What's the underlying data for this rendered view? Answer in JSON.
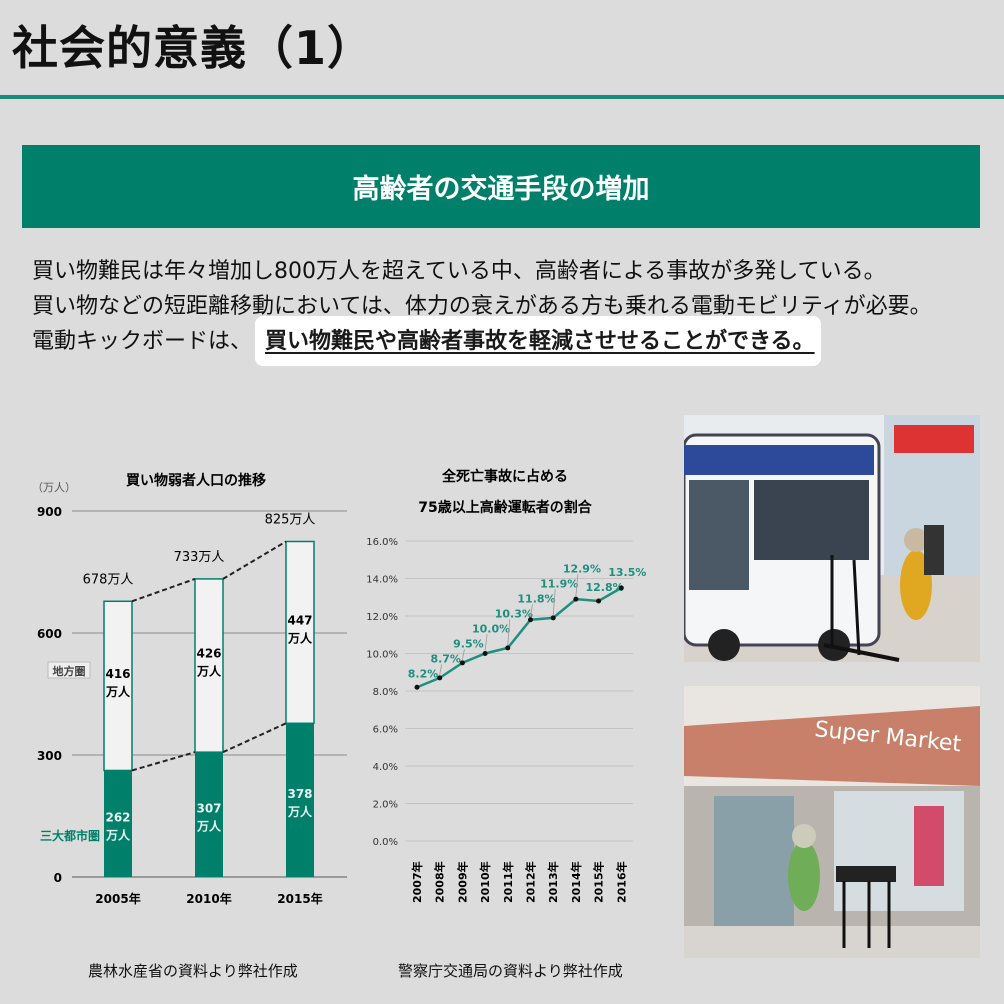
{
  "title": "社会的意義（1）",
  "banner": "高齢者の交通手段の増加",
  "body": {
    "line1": "買い物難民は年々増加し800万人を超えている中、高齢者による事故が多発している。",
    "line2": "買い物などの短距離移動においては、体力の衰えがある方も乗れる電動モビリティが必要。",
    "line3_prefix": "電動キックボードは、",
    "line3_highlight": "買い物難民や高齢者事故を軽減させせることができる。"
  },
  "colors": {
    "accent": "#00806b",
    "background": "#dcdcdc",
    "line": "#1f8f7f"
  },
  "chart_data": [
    {
      "type": "bar",
      "stacked": true,
      "title": "買い物弱者人口の推移",
      "unit_label": "（万人）",
      "categories": [
        "2005年",
        "2010年",
        "2015年"
      ],
      "ylim": [
        0,
        900
      ],
      "yticks": [
        "0",
        "300",
        "600",
        "900"
      ],
      "grid": true,
      "series": [
        {
          "name": "三大都市圏",
          "values": [
            262,
            307,
            378
          ],
          "labels": [
            "262\n万人",
            "307\n万人",
            "378\n万人"
          ],
          "color": "#00806b"
        },
        {
          "name": "地方圏",
          "values": [
            416,
            426,
            447
          ],
          "labels": [
            "416\n万人",
            "426\n万人",
            "447\n万人"
          ],
          "color": "#f2f2f2"
        }
      ],
      "totals": [
        "678万人",
        "733万人",
        "825万人"
      ],
      "source": "農林水産省の資料より弊社作成"
    },
    {
      "type": "line",
      "title": [
        "全死亡事故に占める",
        "75歳以上高齢運転者の割合"
      ],
      "categories": [
        "2007年",
        "2008年",
        "2009年",
        "2010年",
        "2011年",
        "2012年",
        "2013年",
        "2014年",
        "2015年",
        "2016年"
      ],
      "values": [
        8.2,
        8.7,
        9.5,
        10.0,
        10.3,
        11.8,
        11.9,
        12.9,
        12.8,
        13.5
      ],
      "data_labels": [
        "8.2%",
        "8.7%",
        "9.5%",
        "10.0%",
        "10.3%",
        "11.8%",
        "11.9%",
        "12.9%",
        "12.8%",
        "13.5%"
      ],
      "ylim": [
        0,
        16
      ],
      "yticks": [
        "0.0%",
        "2.0%",
        "4.0%",
        "6.0%",
        "8.0%",
        "10.0%",
        "12.0%",
        "14.0%",
        "16.0%"
      ],
      "grid": true,
      "source": "警察庁交通局の資料より弊社作成"
    }
  ],
  "photos": {
    "top": "bus-stop-with-kick-scooters",
    "bottom": "supermarket-with-kick-scooters",
    "bottom_sign": "Super Market"
  }
}
